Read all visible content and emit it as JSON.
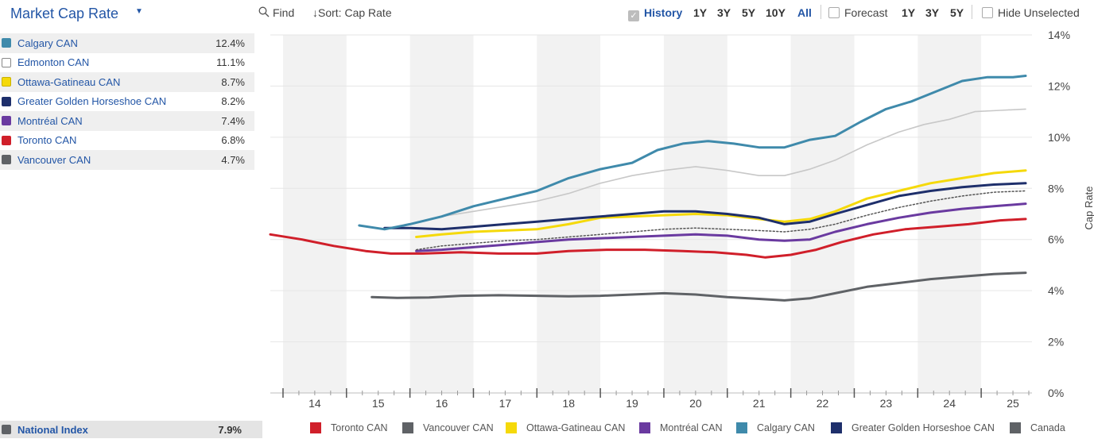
{
  "panel": {
    "title": "Market Cap Rate",
    "series": [
      {
        "name": "Calgary CAN",
        "value": "12.4%",
        "color": "#3f8aab"
      },
      {
        "name": "Edmonton CAN",
        "value": "11.1%",
        "color": "#ffffff"
      },
      {
        "name": "Ottawa-Gatineau CAN",
        "value": "8.7%",
        "color": "#f5d90a"
      },
      {
        "name": "Greater Golden Horseshoe CAN",
        "value": "8.2%",
        "color": "#1e2f6b"
      },
      {
        "name": "Montréal CAN",
        "value": "7.4%",
        "color": "#6a3aa0"
      },
      {
        "name": "Toronto CAN",
        "value": "6.8%",
        "color": "#d01f2a"
      },
      {
        "name": "Vancouver CAN",
        "value": "4.7%",
        "color": "#5f6266"
      }
    ],
    "national": {
      "label": "National Index",
      "value": "7.9%",
      "color": "#5f6266"
    }
  },
  "toolbar": {
    "find": "Find",
    "sort": "↓Sort:  Cap Rate",
    "history": "History",
    "history_ranges": [
      "1Y",
      "3Y",
      "5Y",
      "10Y",
      "All"
    ],
    "history_active": "All",
    "forecast": "Forecast",
    "forecast_ranges": [
      "1Y",
      "3Y",
      "5Y"
    ],
    "hide_unselected": "Hide Unselected"
  },
  "chart_data": {
    "type": "line",
    "ylabel": "Cap Rate",
    "y_ticks": [
      "0%",
      "2%",
      "4%",
      "6%",
      "8%",
      "10%",
      "12%",
      "14%"
    ],
    "ylim": [
      0,
      14
    ],
    "x_ticks": [
      "14",
      "15",
      "16",
      "17",
      "18",
      "19",
      "20",
      "21",
      "22",
      "23",
      "24",
      "25"
    ],
    "xlim": [
      2013.3,
      2025.3
    ],
    "grid": true,
    "legend_position": "bottom",
    "series": [
      {
        "name": "Toronto CAN",
        "color": "#d01f2a",
        "style": "solid",
        "x": [
          2013.3,
          2013.8,
          2014.3,
          2014.8,
          2015.2,
          2015.7,
          2016.3,
          2016.9,
          2017.5,
          2018.0,
          2018.6,
          2019.2,
          2019.8,
          2020.3,
          2020.8,
          2021.1,
          2021.5,
          2021.9,
          2022.3,
          2022.8,
          2023.3,
          2023.8,
          2024.3,
          2024.8,
          2025.2
        ],
        "y": [
          6.2,
          6.0,
          5.75,
          5.55,
          5.45,
          5.45,
          5.5,
          5.45,
          5.45,
          5.55,
          5.6,
          5.6,
          5.55,
          5.5,
          5.4,
          5.3,
          5.4,
          5.6,
          5.9,
          6.2,
          6.4,
          6.5,
          6.6,
          6.75,
          6.8
        ]
      },
      {
        "name": "Vancouver CAN",
        "color": "#5f6266",
        "style": "solid",
        "x": [
          2014.9,
          2015.3,
          2015.8,
          2016.3,
          2016.9,
          2017.5,
          2018.0,
          2018.5,
          2019.0,
          2019.5,
          2020.0,
          2020.5,
          2021.0,
          2021.4,
          2021.8,
          2022.2,
          2022.7,
          2023.2,
          2023.7,
          2024.2,
          2024.7,
          2025.2
        ],
        "y": [
          3.75,
          3.72,
          3.73,
          3.8,
          3.82,
          3.8,
          3.78,
          3.8,
          3.85,
          3.9,
          3.85,
          3.75,
          3.68,
          3.62,
          3.7,
          3.9,
          4.15,
          4.3,
          4.45,
          4.55,
          4.65,
          4.7
        ]
      },
      {
        "name": "Ottawa-Gatineau CAN",
        "color": "#f5d90a",
        "style": "solid",
        "x": [
          2015.6,
          2016.0,
          2016.5,
          2017.0,
          2017.5,
          2018.0,
          2018.5,
          2019.0,
          2019.5,
          2020.0,
          2020.5,
          2021.0,
          2021.4,
          2021.8,
          2022.2,
          2022.7,
          2023.2,
          2023.7,
          2024.2,
          2024.7,
          2025.2
        ],
        "y": [
          6.1,
          6.2,
          6.3,
          6.35,
          6.4,
          6.6,
          6.85,
          6.9,
          6.95,
          7.0,
          6.95,
          6.8,
          6.7,
          6.8,
          7.1,
          7.6,
          7.9,
          8.2,
          8.4,
          8.6,
          8.7
        ]
      },
      {
        "name": "Montréal CAN",
        "color": "#6a3aa0",
        "style": "solid",
        "x": [
          2015.6,
          2016.0,
          2016.5,
          2017.0,
          2017.5,
          2018.0,
          2018.5,
          2019.0,
          2019.5,
          2020.0,
          2020.5,
          2021.0,
          2021.4,
          2021.8,
          2022.2,
          2022.7,
          2023.2,
          2023.7,
          2024.2,
          2024.7,
          2025.2
        ],
        "y": [
          5.55,
          5.6,
          5.7,
          5.8,
          5.9,
          6.0,
          6.05,
          6.1,
          6.15,
          6.2,
          6.15,
          6.0,
          5.95,
          6.0,
          6.3,
          6.6,
          6.85,
          7.05,
          7.2,
          7.3,
          7.4
        ]
      },
      {
        "name": "Calgary CAN",
        "color": "#3f8aab",
        "style": "solid",
        "x": [
          2014.7,
          2015.1,
          2015.5,
          2016.0,
          2016.5,
          2017.0,
          2017.5,
          2018.0,
          2018.5,
          2019.0,
          2019.4,
          2019.8,
          2020.2,
          2020.6,
          2021.0,
          2021.4,
          2021.8,
          2022.2,
          2022.6,
          2023.0,
          2023.4,
          2023.8,
          2024.2,
          2024.6,
          2025.0,
          2025.2
        ],
        "y": [
          6.55,
          6.4,
          6.6,
          6.9,
          7.3,
          7.6,
          7.9,
          8.4,
          8.75,
          9.0,
          9.5,
          9.75,
          9.85,
          9.75,
          9.6,
          9.6,
          9.9,
          10.05,
          10.6,
          11.1,
          11.4,
          11.8,
          12.2,
          12.35,
          12.35,
          12.4
        ]
      },
      {
        "name": "Greater Golden Horseshoe CAN",
        "color": "#1e2f6b",
        "style": "solid",
        "x": [
          2015.1,
          2015.5,
          2016.0,
          2016.5,
          2017.0,
          2017.5,
          2018.0,
          2018.5,
          2019.0,
          2019.5,
          2020.0,
          2020.5,
          2021.0,
          2021.4,
          2021.8,
          2022.2,
          2022.7,
          2023.2,
          2023.7,
          2024.2,
          2024.7,
          2025.2
        ],
        "y": [
          6.45,
          6.45,
          6.4,
          6.5,
          6.6,
          6.7,
          6.8,
          6.9,
          7.0,
          7.1,
          7.1,
          7.0,
          6.85,
          6.6,
          6.7,
          7.0,
          7.35,
          7.7,
          7.9,
          8.05,
          8.15,
          8.2
        ]
      },
      {
        "name": "Edmonton CAN",
        "color": "#c8c8c8",
        "style": "solid",
        "x": [
          2015.7,
          2016.0,
          2016.5,
          2017.0,
          2017.5,
          2018.0,
          2018.5,
          2019.0,
          2019.5,
          2020.0,
          2020.5,
          2021.0,
          2021.4,
          2021.8,
          2022.2,
          2022.7,
          2023.2,
          2023.6,
          2024.0,
          2024.4,
          2024.8,
          2025.2
        ],
        "y": [
          6.7,
          6.9,
          7.1,
          7.3,
          7.5,
          7.8,
          8.2,
          8.5,
          8.7,
          8.85,
          8.7,
          8.5,
          8.5,
          8.75,
          9.1,
          9.7,
          10.2,
          10.5,
          10.7,
          11.0,
          11.05,
          11.1
        ]
      },
      {
        "name": "Canada",
        "color": "#555555",
        "style": "dotted",
        "x": [
          2015.6,
          2016.0,
          2016.5,
          2017.0,
          2017.5,
          2018.0,
          2018.5,
          2019.0,
          2019.5,
          2020.0,
          2020.5,
          2021.0,
          2021.4,
          2021.8,
          2022.2,
          2022.7,
          2023.2,
          2023.7,
          2024.2,
          2024.7,
          2025.2
        ],
        "y": [
          5.6,
          5.75,
          5.85,
          5.95,
          6.0,
          6.1,
          6.2,
          6.3,
          6.4,
          6.45,
          6.4,
          6.35,
          6.3,
          6.4,
          6.6,
          6.95,
          7.25,
          7.5,
          7.7,
          7.85,
          7.9
        ]
      }
    ],
    "legend": [
      {
        "name": "Toronto CAN",
        "color": "#d01f2a"
      },
      {
        "name": "Vancouver CAN",
        "color": "#5f6266"
      },
      {
        "name": "Ottawa-Gatineau CAN",
        "color": "#f5d90a"
      },
      {
        "name": "Montréal CAN",
        "color": "#6a3aa0"
      },
      {
        "name": "Calgary CAN",
        "color": "#3f8aab"
      },
      {
        "name": "Greater Golden Horseshoe CAN",
        "color": "#1e2f6b"
      },
      {
        "name": "Canada",
        "color": "#5f6266"
      }
    ]
  }
}
